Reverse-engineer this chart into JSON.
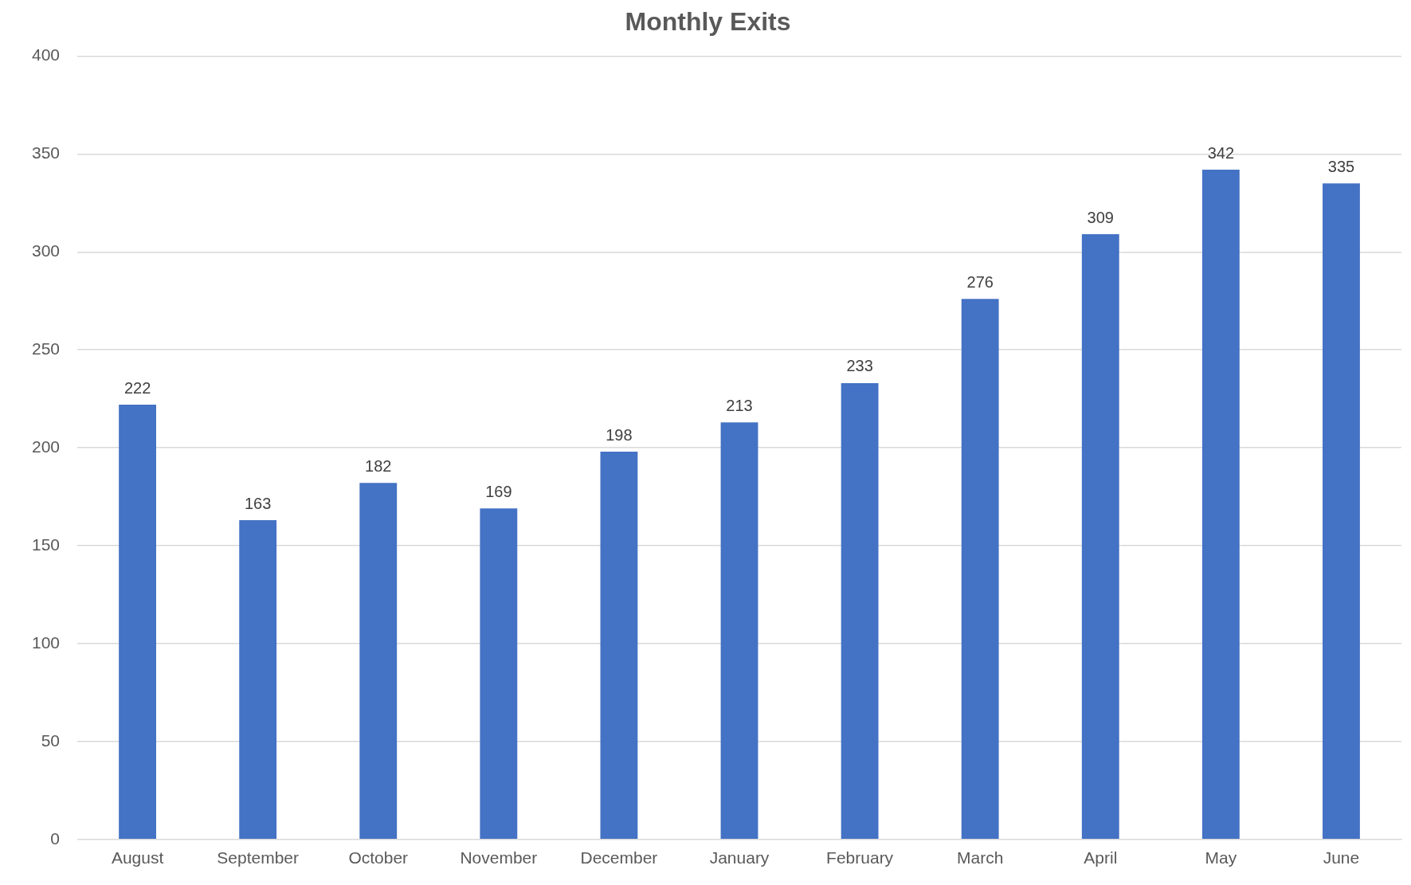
{
  "chart_data": {
    "type": "bar",
    "title": "Monthly Exits",
    "categories": [
      "August",
      "September",
      "October",
      "November",
      "December",
      "January",
      "February",
      "March",
      "April",
      "May",
      "June"
    ],
    "values": [
      222,
      163,
      182,
      169,
      198,
      213,
      233,
      276,
      309,
      342,
      335
    ],
    "color": "#4472c4",
    "ylim": [
      0,
      400
    ],
    "yticks": [
      0,
      50,
      100,
      150,
      200,
      250,
      300,
      350,
      400
    ],
    "grid": "y",
    "data_labels": true,
    "legend": false
  }
}
